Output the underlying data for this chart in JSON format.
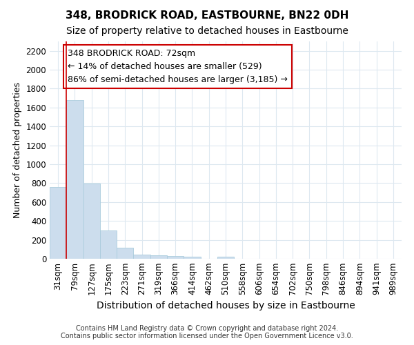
{
  "title": "348, BRODRICK ROAD, EASTBOURNE, BN22 0DH",
  "subtitle": "Size of property relative to detached houses in Eastbourne",
  "xlabel": "Distribution of detached houses by size in Eastbourne",
  "ylabel": "Number of detached properties",
  "footer_line1": "Contains HM Land Registry data © Crown copyright and database right 2024.",
  "footer_line2": "Contains public sector information licensed under the Open Government Licence v3.0.",
  "annotation_line1": "348 BRODRICK ROAD: 72sqm",
  "annotation_line2": "← 14% of detached houses are smaller (529)",
  "annotation_line3": "86% of semi-detached houses are larger (3,185) →",
  "bar_color": "#ccdded",
  "bar_edgecolor": "#aaccdd",
  "redline_color": "#cc0000",
  "categories": [
    "31sqm",
    "79sqm",
    "127sqm",
    "175sqm",
    "223sqm",
    "271sqm",
    "319sqm",
    "366sqm",
    "414sqm",
    "462sqm",
    "510sqm",
    "558sqm",
    "606sqm",
    "654sqm",
    "702sqm",
    "750sqm",
    "798sqm",
    "846sqm",
    "894sqm",
    "941sqm",
    "989sqm"
  ],
  "values": [
    760,
    1680,
    795,
    300,
    115,
    45,
    35,
    30,
    25,
    0,
    25,
    0,
    0,
    0,
    0,
    0,
    0,
    0,
    0,
    0,
    0
  ],
  "ylim": [
    0,
    2300
  ],
  "yticks": [
    0,
    200,
    400,
    600,
    800,
    1000,
    1200,
    1400,
    1600,
    1800,
    2000,
    2200
  ],
  "background_color": "#ffffff",
  "plot_background": "#ffffff",
  "grid_color": "#dde8f0",
  "title_fontsize": 11,
  "subtitle_fontsize": 10,
  "xlabel_fontsize": 10,
  "ylabel_fontsize": 9,
  "tick_fontsize": 8.5,
  "annotation_fontsize": 9,
  "footer_fontsize": 7
}
